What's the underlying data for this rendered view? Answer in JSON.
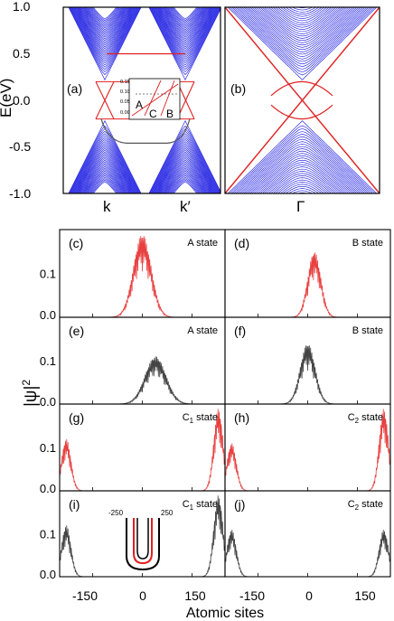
{
  "figure": {
    "colors": {
      "band": "#1010e0",
      "edge": "#e02020",
      "dark": "#444444",
      "red_wave": "#e84040"
    }
  },
  "chart_data": [
    {
      "id": "a",
      "type": "line",
      "panel_label": "(a)",
      "ylabel": "E(eV)",
      "ylim": [
        -1.0,
        1.0
      ],
      "yticks": [
        "1.0",
        "0.5",
        "0.0",
        "-0.5",
        "-1.0"
      ],
      "xticks": [
        "k",
        "k′"
      ],
      "series": [
        {
          "role": "bulk-bands",
          "color": "#1010e0"
        },
        {
          "role": "edge-state",
          "color": "#e02020",
          "flat_band_E": 0.5
        },
        {
          "role": "edge-state",
          "color": "#555555",
          "flat_band_E": -0.45
        }
      ],
      "inset": {
        "yticks": [
          "0.15",
          "0.10",
          "0.05",
          "0.00"
        ],
        "labels": [
          "A",
          "B",
          "C"
        ],
        "dashed_line_E": 0.09
      }
    },
    {
      "id": "b",
      "type": "line",
      "panel_label": "(b)",
      "ylim": [
        -1.0,
        1.0
      ],
      "xticks": [
        "Γ"
      ],
      "series": [
        {
          "role": "bulk-bands",
          "color": "#1010e0"
        },
        {
          "role": "edge-state",
          "color": "#e02020"
        }
      ]
    },
    {
      "id": "wavefunctions",
      "type": "line",
      "ylabel": "|ψ|",
      "ylabel_sup": "2",
      "xlabel": "Atomic sites",
      "xticks": [
        "-150",
        "0",
        "150"
      ],
      "xlim": [
        -250,
        250
      ],
      "yticks_top": [
        "0.1",
        "0.0"
      ],
      "panels": [
        {
          "id": "c",
          "panel_label": "(c)",
          "state": "A state",
          "color": "#e84040",
          "ylim": [
            0,
            0.2
          ],
          "yticks": [
            "0.1",
            "0.0"
          ],
          "peaks": [
            {
              "center": 0,
              "height": 0.19,
              "width": 38
            }
          ]
        },
        {
          "id": "d",
          "panel_label": "(d)",
          "state": "B state",
          "color": "#e84040",
          "ylim": [
            0,
            0.2
          ],
          "peaks": [
            {
              "center": 20,
              "height": 0.15,
              "width": 28
            }
          ]
        },
        {
          "id": "e",
          "panel_label": "(e)",
          "state": "A state",
          "color": "#444444",
          "ylim": [
            0,
            0.2
          ],
          "yticks": [
            "0.1",
            "0.0"
          ],
          "peaks": [
            {
              "center": 40,
              "height": 0.11,
              "width": 45
            }
          ]
        },
        {
          "id": "f",
          "panel_label": "(f)",
          "state": "B state",
          "color": "#444444",
          "ylim": [
            0,
            0.2
          ],
          "peaks": [
            {
              "center": 0,
              "height": 0.14,
              "width": 32
            }
          ]
        },
        {
          "id": "g",
          "panel_label": "(g)",
          "state": "C",
          "state_sub": "1",
          "state_suffix": " state",
          "color": "#e84040",
          "ylim": [
            0,
            0.2
          ],
          "yticks": [
            "0.1",
            "0.0"
          ],
          "peaks": [
            {
              "center": -230,
              "height": 0.12,
              "width": 20
            },
            {
              "center": 230,
              "height": 0.19,
              "width": 20
            }
          ]
        },
        {
          "id": "h",
          "panel_label": "(h)",
          "state": "C",
          "state_sub": "2",
          "state_suffix": " state",
          "color": "#e84040",
          "ylim": [
            0,
            0.2
          ],
          "peaks": [
            {
              "center": -230,
              "height": 0.11,
              "width": 20
            },
            {
              "center": 230,
              "height": 0.19,
              "width": 20
            }
          ]
        },
        {
          "id": "i",
          "panel_label": "(i)",
          "state": "C",
          "state_sub": "1",
          "state_suffix": " state",
          "color": "#444444",
          "ylim": [
            0,
            0.2
          ],
          "yticks": [
            "0.1",
            "0.0"
          ],
          "peaks": [
            {
              "center": -230,
              "height": 0.12,
              "width": 20
            },
            {
              "center": 230,
              "height": 0.19,
              "width": 20
            }
          ],
          "inset": {
            "left_label": "-250",
            "right_label": "250"
          }
        },
        {
          "id": "j",
          "panel_label": "(j)",
          "state": "C",
          "state_sub": "2",
          "state_suffix": " state",
          "color": "#444444",
          "ylim": [
            0,
            0.2
          ],
          "peaks": [
            {
              "center": -230,
              "height": 0.11,
              "width": 20
            },
            {
              "center": 230,
              "height": 0.11,
              "width": 20
            }
          ]
        }
      ]
    }
  ]
}
